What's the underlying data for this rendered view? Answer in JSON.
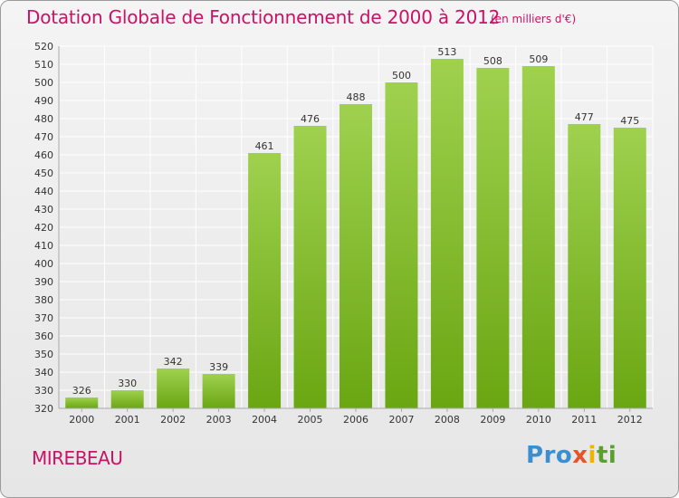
{
  "header": {
    "title": "Dotation Globale de Fonctionnement de 2000 à 2012",
    "unit": "(en milliers d'€)"
  },
  "footer": {
    "commune": "MIREBEAU",
    "logo_letters": [
      {
        "char": "P",
        "color": "#3a8fd0"
      },
      {
        "char": "r",
        "color": "#3a8fd0"
      },
      {
        "char": "o",
        "color": "#3a8fd0"
      },
      {
        "char": "x",
        "color": "#e8542a"
      },
      {
        "char": "i",
        "color": "#f0b400"
      },
      {
        "char": "t",
        "color": "#5aa02c"
      },
      {
        "char": "i",
        "color": "#5aa02c"
      }
    ]
  },
  "colors": {
    "title": "#cc1166",
    "bar_top": "#9fd14f",
    "bar_bottom": "#6aa612",
    "grid": "#ffffff",
    "axis_text": "#333333"
  },
  "chart_data": {
    "type": "bar",
    "categories": [
      "2000",
      "2001",
      "2002",
      "2003",
      "2004",
      "2005",
      "2006",
      "2007",
      "2008",
      "2009",
      "2010",
      "2011",
      "2012"
    ],
    "values": [
      326,
      330,
      342,
      339,
      461,
      476,
      488,
      500,
      513,
      508,
      509,
      477,
      475
    ],
    "ylim": [
      320,
      520
    ],
    "yticks": [
      320,
      330,
      340,
      350,
      360,
      370,
      380,
      390,
      400,
      410,
      420,
      430,
      440,
      450,
      460,
      470,
      480,
      490,
      500,
      510,
      520
    ],
    "grid": true,
    "data_labels": true
  }
}
